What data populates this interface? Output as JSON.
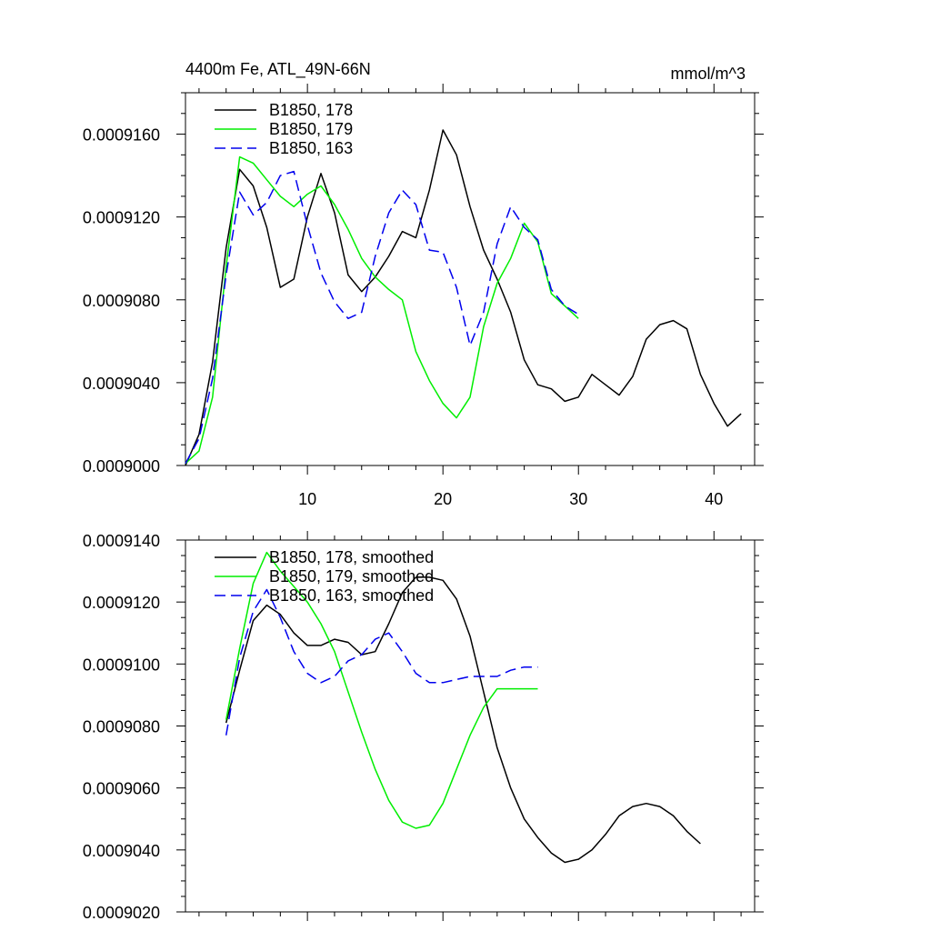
{
  "chart_data": [
    {
      "type": "line",
      "title": "4400m Fe, ATL_49N-66N",
      "units": "mmol/m^3",
      "xlabel": "",
      "ylabel": "",
      "xlim": [
        1,
        43
      ],
      "ylim": [
        0.0009,
        0.000918
      ],
      "xticks": [
        10,
        20,
        30,
        40
      ],
      "xtick_labels": [
        "10",
        "20",
        "30",
        "40"
      ],
      "yticks": [
        0.0009,
        0.000904,
        0.000908,
        0.000912,
        0.000916
      ],
      "ytick_labels": [
        "0.0009000",
        "0.0009040",
        "0.0009080",
        "0.0009120",
        "0.0009160"
      ],
      "legend_position": "top-left",
      "series": [
        {
          "name": "B1850, 178",
          "color": "#000000",
          "dash": "solid",
          "x": [
            1,
            2,
            3,
            4,
            5,
            6,
            7,
            8,
            9,
            10,
            11,
            12,
            13,
            14,
            15,
            16,
            17,
            18,
            19,
            20,
            21,
            22,
            23,
            24,
            25,
            26,
            27,
            28,
            29,
            30,
            31,
            32,
            33,
            34,
            35,
            36,
            37,
            38,
            39,
            40,
            41,
            42
          ],
          "y": [
            0.0009,
            0.0009015,
            0.000905,
            0.0009105,
            0.0009143,
            0.0009135,
            0.0009115,
            0.0009086,
            0.000909,
            0.000912,
            0.0009141,
            0.0009122,
            0.0009092,
            0.0009084,
            0.0009091,
            0.0009101,
            0.0009113,
            0.000911,
            0.0009133,
            0.0009162,
            0.000915,
            0.0009125,
            0.0009104,
            0.000909,
            0.0009074,
            0.0009051,
            0.0009039,
            0.0009037,
            0.0009031,
            0.0009033,
            0.0009044,
            0.0009039,
            0.0009034,
            0.0009043,
            0.0009061,
            0.0009068,
            0.000907,
            0.0009066,
            0.0009044,
            0.000903,
            0.0009019,
            0.0009025
          ]
        },
        {
          "name": "B1850, 179",
          "color": "#00ee00",
          "dash": "solid",
          "x": [
            1,
            2,
            3,
            4,
            5,
            6,
            7,
            8,
            9,
            10,
            11,
            12,
            13,
            14,
            15,
            16,
            17,
            18,
            19,
            20,
            21,
            22,
            23,
            24,
            25,
            26,
            27,
            28,
            29,
            30
          ],
          "y": [
            0.0009001,
            0.0009007,
            0.0009033,
            0.0009096,
            0.0009149,
            0.0009146,
            0.0009138,
            0.000913,
            0.0009125,
            0.0009131,
            0.0009135,
            0.0009126,
            0.0009114,
            0.00091,
            0.0009091,
            0.0009085,
            0.000908,
            0.0009055,
            0.0009041,
            0.000903,
            0.0009023,
            0.0009033,
            0.0009067,
            0.0009088,
            0.00091,
            0.0009117,
            0.0009108,
            0.0009083,
            0.0009077,
            0.0009071
          ]
        },
        {
          "name": "B1850, 163",
          "color": "#0000ee",
          "dash": "dashed",
          "x": [
            1,
            2,
            3,
            4,
            5,
            6,
            7,
            8,
            9,
            10,
            11,
            12,
            13,
            14,
            15,
            16,
            17,
            18,
            19,
            20,
            21,
            22,
            23,
            24,
            25,
            26,
            27,
            28,
            29,
            30
          ],
          "y": [
            0.0009001,
            0.0009013,
            0.0009042,
            0.0009092,
            0.0009132,
            0.0009121,
            0.0009127,
            0.000914,
            0.0009142,
            0.0009116,
            0.0009093,
            0.0009079,
            0.0009071,
            0.0009074,
            0.0009101,
            0.0009122,
            0.0009133,
            0.0009126,
            0.0009104,
            0.0009103,
            0.0009086,
            0.0009058,
            0.0009074,
            0.0009107,
            0.0009125,
            0.0009115,
            0.0009109,
            0.0009085,
            0.0009077,
            0.0009073
          ]
        }
      ]
    },
    {
      "type": "line",
      "title": "",
      "xlabel": "",
      "ylabel": "",
      "xlim": [
        1,
        43
      ],
      "ylim": [
        0.000902,
        0.000914
      ],
      "xticks": [
        10,
        20,
        30,
        40
      ],
      "xtick_labels": [],
      "yticks": [
        0.000902,
        0.000904,
        0.000906,
        0.000908,
        0.00091,
        0.000912,
        0.000914
      ],
      "ytick_labels": [
        "0.0009020",
        "0.0009040",
        "0.0009060",
        "0.0009080",
        "0.0009100",
        "0.0009120",
        "0.0009140"
      ],
      "legend_position": "top-left",
      "series": [
        {
          "name": "B1850, 178, smoothed",
          "color": "#000000",
          "dash": "solid",
          "x": [
            4,
            5,
            6,
            7,
            8,
            9,
            10,
            11,
            12,
            13,
            14,
            15,
            16,
            17,
            18,
            19,
            20,
            21,
            22,
            23,
            24,
            25,
            26,
            27,
            28,
            29,
            30,
            31,
            32,
            33,
            34,
            35,
            36,
            37,
            38,
            39
          ],
          "y": [
            0.0009081,
            0.0009098,
            0.0009114,
            0.0009119,
            0.0009116,
            0.000911,
            0.0009106,
            0.0009106,
            0.0009108,
            0.0009107,
            0.0009103,
            0.0009104,
            0.0009113,
            0.0009123,
            0.0009128,
            0.0009128,
            0.0009127,
            0.0009121,
            0.0009109,
            0.0009091,
            0.0009073,
            0.000906,
            0.000905,
            0.0009044,
            0.0009039,
            0.0009036,
            0.0009037,
            0.000904,
            0.0009045,
            0.0009051,
            0.0009054,
            0.0009055,
            0.0009054,
            0.0009051,
            0.0009046,
            0.0009042
          ]
        },
        {
          "name": "B1850, 179, smoothed",
          "color": "#00ee00",
          "dash": "solid",
          "x": [
            4,
            5,
            6,
            7,
            8,
            9,
            10,
            11,
            12,
            13,
            14,
            15,
            16,
            17,
            18,
            19,
            20,
            21,
            22,
            23,
            24,
            25,
            26,
            27
          ],
          "y": [
            0.0009082,
            0.0009105,
            0.0009126,
            0.0009136,
            0.000913,
            0.0009125,
            0.000912,
            0.0009113,
            0.0009104,
            0.0009091,
            0.0009078,
            0.0009066,
            0.0009056,
            0.0009049,
            0.0009047,
            0.0009048,
            0.0009055,
            0.0009066,
            0.0009077,
            0.0009086,
            0.0009092,
            0.0009092,
            0.0009092,
            0.0009092
          ]
        },
        {
          "name": "B1850, 163, smoothed",
          "color": "#0000ee",
          "dash": "dashed",
          "x": [
            4,
            5,
            6,
            7,
            8,
            9,
            10,
            11,
            12,
            13,
            14,
            15,
            16,
            17,
            18,
            19,
            20,
            21,
            22,
            23,
            24,
            25,
            26,
            27
          ],
          "y": [
            0.0009077,
            0.0009102,
            0.0009117,
            0.0009124,
            0.0009115,
            0.0009104,
            0.0009097,
            0.0009094,
            0.0009096,
            0.0009101,
            0.0009103,
            0.0009108,
            0.000911,
            0.0009104,
            0.0009097,
            0.0009094,
            0.0009094,
            0.0009095,
            0.0009096,
            0.0009096,
            0.0009096,
            0.0009098,
            0.0009099,
            0.0009099
          ]
        }
      ]
    }
  ]
}
